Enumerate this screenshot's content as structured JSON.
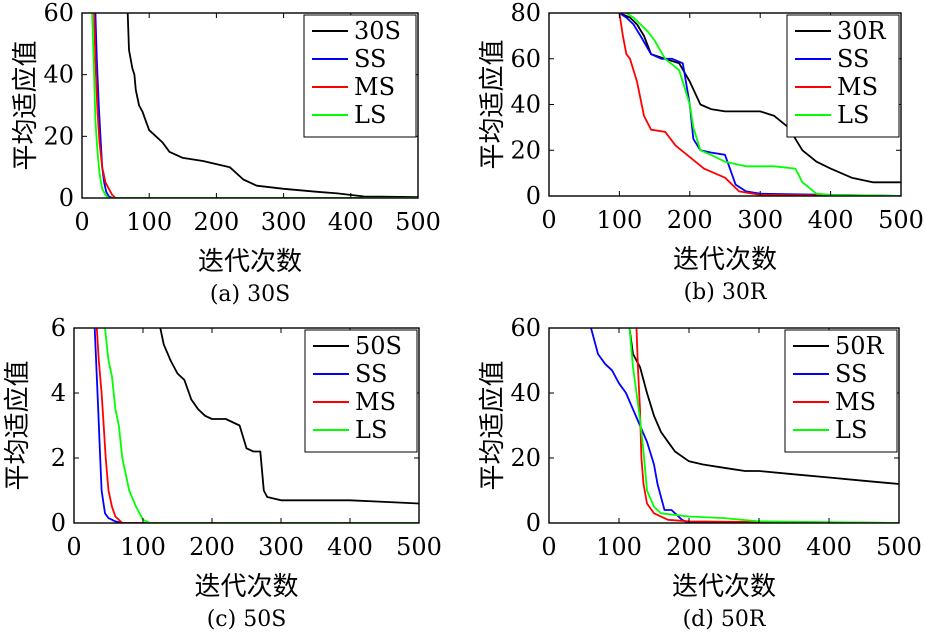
{
  "figure": {
    "subplots": [
      {
        "caption": "(a) 30S",
        "xlabel": "迭代次数",
        "ylabel": "平均适应值"
      },
      {
        "caption": "(b) 30R",
        "xlabel": "迭代次数",
        "ylabel": "平均适应值"
      },
      {
        "caption": "(c) 50S",
        "xlabel": "迭代次数",
        "ylabel": "平均适应值"
      },
      {
        "caption": "(d) 50R",
        "xlabel": "迭代次数",
        "ylabel": "平均适应值"
      }
    ]
  },
  "chart_data": [
    {
      "type": "line",
      "title": "(a) 30S",
      "xlabel": "迭代次数",
      "ylabel": "平均适应值",
      "xlim": [
        0,
        500
      ],
      "ylim": [
        0,
        60
      ],
      "xticks": [
        0,
        100,
        200,
        300,
        400,
        500
      ],
      "yticks": [
        0,
        20,
        40,
        60
      ],
      "grid": false,
      "legend_position": "top-right",
      "series": [
        {
          "name": "30S",
          "color": "#000000",
          "x": [
            68,
            70,
            75,
            78,
            80,
            85,
            90,
            95,
            100,
            110,
            120,
            130,
            150,
            180,
            200,
            220,
            240,
            260,
            300,
            350,
            380,
            420,
            500
          ],
          "y": [
            60,
            48,
            42,
            40,
            35,
            30,
            28,
            25,
            22,
            20,
            18,
            15,
            13,
            12,
            11,
            10,
            6,
            4,
            3,
            2,
            1.5,
            0.5,
            0.3
          ]
        },
        {
          "name": "SS",
          "color": "#0000ff",
          "x": [
            20,
            22,
            25,
            28,
            30,
            33,
            36,
            40,
            45,
            500
          ],
          "y": [
            60,
            45,
            30,
            18,
            10,
            5,
            2,
            0.5,
            0,
            0
          ]
        },
        {
          "name": "MS",
          "color": "#ff0000",
          "x": [
            18,
            20,
            23,
            26,
            30,
            35,
            40,
            45,
            50,
            500
          ],
          "y": [
            60,
            45,
            28,
            18,
            10,
            5,
            3,
            1,
            0,
            0
          ]
        },
        {
          "name": "LS",
          "color": "#00ff00",
          "x": [
            15,
            18,
            20,
            23,
            26,
            30,
            35,
            40,
            500
          ],
          "y": [
            60,
            40,
            25,
            15,
            8,
            3,
            1,
            0,
            0
          ]
        }
      ]
    },
    {
      "type": "line",
      "title": "(b) 30R",
      "xlabel": "迭代次数",
      "ylabel": "平均适应值",
      "xlim": [
        0,
        500
      ],
      "ylim": [
        0,
        80
      ],
      "xticks": [
        0,
        100,
        200,
        300,
        400,
        500
      ],
      "yticks": [
        0,
        20,
        40,
        60,
        80
      ],
      "grid": false,
      "legend_position": "top-right",
      "series": [
        {
          "name": "30R",
          "color": "#000000",
          "x": [
            100,
            115,
            125,
            135,
            145,
            165,
            185,
            200,
            215,
            230,
            250,
            270,
            300,
            320,
            340,
            350,
            360,
            380,
            400,
            430,
            460,
            500
          ],
          "y": [
            80,
            78,
            75,
            70,
            62,
            60,
            58,
            50,
            40,
            38,
            37,
            37,
            37,
            35,
            30,
            25,
            20,
            15,
            12,
            8,
            6,
            6
          ]
        },
        {
          "name": "SS",
          "color": "#0000ff",
          "x": [
            100,
            110,
            120,
            130,
            145,
            160,
            175,
            190,
            200,
            205,
            215,
            230,
            250,
            265,
            280,
            300,
            500
          ],
          "y": [
            80,
            78,
            75,
            70,
            62,
            60,
            60,
            58,
            40,
            25,
            20,
            19,
            18,
            5,
            2,
            1,
            0
          ]
        },
        {
          "name": "MS",
          "color": "#ff0000",
          "x": [
            100,
            105,
            110,
            115,
            125,
            135,
            145,
            165,
            180,
            200,
            220,
            250,
            270,
            300,
            500
          ],
          "y": [
            80,
            70,
            62,
            60,
            50,
            35,
            29,
            28,
            22,
            17,
            12,
            8,
            2,
            0.5,
            0
          ]
        },
        {
          "name": "LS",
          "color": "#00ff00",
          "x": [
            110,
            120,
            130,
            140,
            150,
            165,
            185,
            200,
            205,
            215,
            230,
            250,
            280,
            320,
            350,
            360,
            380,
            400,
            500
          ],
          "y": [
            80,
            78,
            75,
            72,
            68,
            60,
            55,
            40,
            30,
            20,
            18,
            15,
            13,
            13,
            12,
            6,
            1,
            0.5,
            0
          ]
        }
      ]
    },
    {
      "type": "line",
      "title": "(c) 50S",
      "xlabel": "迭代次数",
      "ylabel": "平均适应值",
      "xlim": [
        0,
        500
      ],
      "ylim": [
        0,
        6
      ],
      "xticks": [
        0,
        100,
        200,
        300,
        400,
        500
      ],
      "yticks": [
        0,
        2,
        4,
        6
      ],
      "grid": false,
      "legend_position": "top-right",
      "series": [
        {
          "name": "50S",
          "color": "#000000",
          "x": [
            125,
            130,
            140,
            150,
            160,
            170,
            180,
            190,
            200,
            220,
            240,
            250,
            260,
            270,
            275,
            280,
            300,
            350,
            400,
            450,
            500
          ],
          "y": [
            6,
            5.5,
            5,
            4.6,
            4.4,
            3.8,
            3.5,
            3.3,
            3.2,
            3.2,
            3.0,
            2.3,
            2.2,
            2.2,
            1.0,
            0.8,
            0.7,
            0.7,
            0.7,
            0.65,
            0.6
          ]
        },
        {
          "name": "SS",
          "color": "#0000ff",
          "x": [
            30,
            32,
            35,
            38,
            40,
            45,
            50,
            60,
            70,
            500
          ],
          "y": [
            6,
            5,
            3.5,
            2,
            1,
            0.3,
            0.15,
            0.05,
            0,
            0
          ]
        },
        {
          "name": "MS",
          "color": "#ff0000",
          "x": [
            33,
            36,
            40,
            43,
            46,
            50,
            55,
            60,
            70,
            500
          ],
          "y": [
            6,
            5,
            4,
            3,
            2,
            1,
            0.5,
            0.2,
            0,
            0
          ]
        },
        {
          "name": "LS",
          "color": "#00ff00",
          "x": [
            45,
            50,
            55,
            60,
            65,
            70,
            75,
            80,
            90,
            100,
            110,
            500
          ],
          "y": [
            6,
            5,
            4.5,
            3.5,
            3,
            2,
            1.5,
            1,
            0.5,
            0.1,
            0,
            0
          ]
        }
      ]
    },
    {
      "type": "line",
      "title": "(d) 50R",
      "xlabel": "迭代次数",
      "ylabel": "平均适应值",
      "xlim": [
        0,
        500
      ],
      "ylim": [
        0,
        60
      ],
      "xticks": [
        0,
        100,
        200,
        300,
        400,
        500
      ],
      "yticks": [
        0,
        20,
        40,
        60
      ],
      "grid": false,
      "legend_position": "top-right",
      "series": [
        {
          "name": "50R",
          "color": "#000000",
          "x": [
            115,
            120,
            130,
            140,
            150,
            160,
            170,
            180,
            200,
            220,
            250,
            280,
            300,
            350,
            400,
            450,
            500
          ],
          "y": [
            60,
            52,
            48,
            40,
            33,
            28,
            25,
            22,
            19,
            18,
            17,
            16,
            16,
            15,
            14,
            13,
            12
          ]
        },
        {
          "name": "SS",
          "color": "#0000ff",
          "x": [
            60,
            65,
            70,
            80,
            90,
            100,
            110,
            120,
            130,
            140,
            150,
            155,
            165,
            175,
            190,
            200,
            500
          ],
          "y": [
            60,
            56,
            52,
            49,
            47,
            43,
            40,
            35,
            30,
            25,
            18,
            12,
            4,
            4,
            1,
            0,
            0
          ]
        },
        {
          "name": "MS",
          "color": "#ff0000",
          "x": [
            125,
            127,
            130,
            132,
            135,
            140,
            150,
            170,
            200,
            500
          ],
          "y": [
            60,
            48,
            35,
            20,
            12,
            6,
            3,
            1,
            0.5,
            0
          ]
        },
        {
          "name": "LS",
          "color": "#00ff00",
          "x": [
            115,
            120,
            125,
            130,
            135,
            140,
            150,
            160,
            200,
            250,
            300,
            500
          ],
          "y": [
            60,
            48,
            40,
            32,
            22,
            10,
            5,
            3,
            2,
            1.5,
            0.5,
            0
          ]
        }
      ]
    }
  ]
}
